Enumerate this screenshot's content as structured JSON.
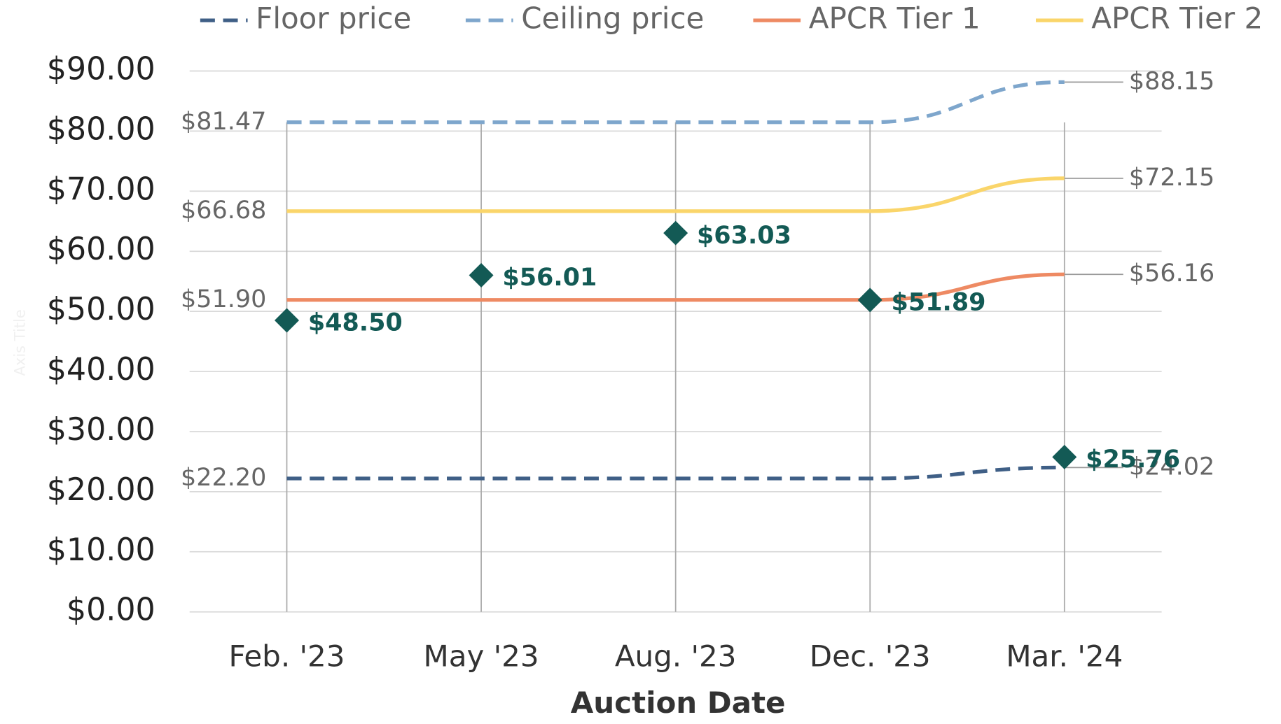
{
  "chart_data": {
    "type": "line",
    "x_label": "Auction Date",
    "y_label": "Axis Title",
    "categories": [
      "Feb. '23",
      "May '23",
      "Aug. '23",
      "Dec. '23",
      "Mar. '24"
    ],
    "series": [
      {
        "name": "Floor price",
        "color": "#3f5f86",
        "dash": true,
        "values": [
          22.2,
          22.2,
          22.2,
          22.2,
          24.02
        ],
        "value_labels": [
          "$22.20",
          null,
          null,
          null,
          "$24.02"
        ]
      },
      {
        "name": "Ceiling price",
        "color": "#7ea6cc",
        "dash": true,
        "values": [
          81.47,
          81.47,
          81.47,
          81.47,
          88.15
        ],
        "value_labels": [
          "$81.47",
          null,
          null,
          null,
          "$88.15"
        ]
      },
      {
        "name": "APCR Tier 1",
        "color": "#ee8a63",
        "dash": false,
        "values": [
          51.9,
          51.9,
          51.9,
          51.9,
          56.16
        ],
        "value_labels": [
          "$51.90",
          null,
          null,
          null,
          "$56.16"
        ]
      },
      {
        "name": "APCR Tier 2",
        "color": "#fad56a",
        "dash": false,
        "values": [
          66.68,
          66.68,
          66.68,
          66.68,
          72.15
        ],
        "value_labels": [
          "$66.68",
          null,
          null,
          null,
          "$72.15"
        ]
      }
    ],
    "markers": {
      "color": "#135a55",
      "values": [
        48.5,
        56.01,
        63.03,
        51.89,
        25.76
      ],
      "value_labels": [
        "$48.50",
        "$56.01",
        "$63.03",
        "$51.89",
        "$25.76"
      ]
    },
    "ylim": [
      0,
      90
    ],
    "yticks": [
      {
        "value": 0,
        "label": "$0.00"
      },
      {
        "value": 10,
        "label": "$10.00"
      },
      {
        "value": 20,
        "label": "$20.00"
      },
      {
        "value": 30,
        "label": "$30.00"
      },
      {
        "value": 40,
        "label": "$40.00"
      },
      {
        "value": 50,
        "label": "$50.00"
      },
      {
        "value": 60,
        "label": "$60.00"
      },
      {
        "value": 70,
        "label": "$70.00"
      },
      {
        "value": 80,
        "label": "$80.00"
      },
      {
        "value": 90,
        "label": "$90.00"
      }
    ],
    "grid": true,
    "legend": "top"
  }
}
